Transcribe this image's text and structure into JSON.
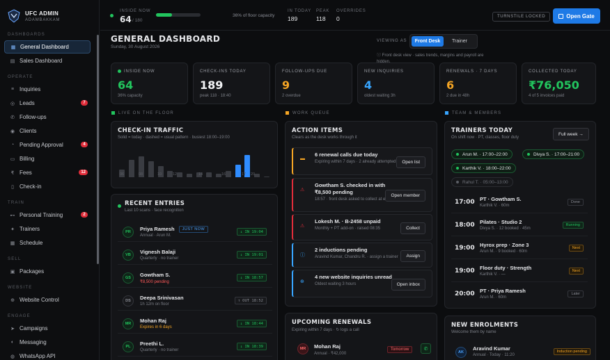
{
  "brand": {
    "name": "UFC ADMIN",
    "location": "ADAMBAKKAM"
  },
  "sidebar": {
    "sections": [
      {
        "label": "DASHBOARDS",
        "items": [
          {
            "label": "General Dashboard",
            "icon": "grid-icon",
            "active": true
          },
          {
            "label": "Sales Dashboard",
            "icon": "chart-icon"
          }
        ]
      },
      {
        "label": "OPERATE",
        "items": [
          {
            "label": "Inquiries",
            "icon": "inbox-icon"
          },
          {
            "label": "Leads",
            "icon": "target-icon",
            "badge": "7"
          },
          {
            "label": "Follow-ups",
            "icon": "phone-icon"
          },
          {
            "label": "Clients",
            "icon": "user-icon"
          },
          {
            "label": "Pending Approval",
            "icon": "clock-icon",
            "badge": "4"
          },
          {
            "label": "Billing",
            "icon": "receipt-icon"
          },
          {
            "label": "Fees",
            "icon": "rupee-icon",
            "badge": "12"
          },
          {
            "label": "Check-in",
            "icon": "door-icon"
          }
        ]
      },
      {
        "label": "TRAIN",
        "items": [
          {
            "label": "Personal Training",
            "icon": "dumbbell-icon",
            "badge": "2"
          },
          {
            "label": "Trainers",
            "icon": "star-icon"
          },
          {
            "label": "Schedule",
            "icon": "calendar-icon"
          }
        ]
      },
      {
        "label": "SELL",
        "items": [
          {
            "label": "Packages",
            "icon": "box-icon"
          }
        ]
      },
      {
        "label": "WEBSITE",
        "items": [
          {
            "label": "Website Control",
            "icon": "globe-icon"
          }
        ]
      },
      {
        "label": "ENGAGE",
        "items": [
          {
            "label": "Campaigns",
            "icon": "send-icon"
          },
          {
            "label": "Messaging",
            "icon": "chat-icon"
          },
          {
            "label": "WhatsApp API",
            "icon": "whatsapp-icon"
          }
        ]
      }
    ]
  },
  "topbar": {
    "inside_now_label": "INSIDE NOW",
    "inside_now": "64",
    "inside_cap": "/ 180",
    "occupancy": 0.36,
    "occupancy_text": "36% of floor capacity",
    "in_today_label": "IN TODAY",
    "in_today": "189",
    "peak_label": "PEAK",
    "peak": "118",
    "overrides_label": "OVERRIDES",
    "overrides": "0",
    "turnstile": "TURNSTILE LOCKED",
    "open_gate": "Open Gate"
  },
  "header": {
    "title": "GENERAL DASHBOARD",
    "date": "Sunday, 30 August 2026",
    "viewing_as": "VIEWING AS",
    "views": [
      "Front Desk",
      "Trainer"
    ],
    "note": "Front desk view · sales trends, margins and payroll are hidden."
  },
  "stats": [
    {
      "label": "INSIDE NOW",
      "value": "64",
      "sub": "36% capacity",
      "color": "#22c55e"
    },
    {
      "label": "CHECK-INS TODAY",
      "value": "189",
      "sub": "peak 118 · 18:40",
      "color": "#f3f4f6"
    },
    {
      "label": "FOLLOW-UPS DUE",
      "value": "9",
      "sub": "2 overdue",
      "color": "#f5a524"
    },
    {
      "label": "NEW INQUIRIES",
      "value": "4",
      "sub": "oldest waiting 3h",
      "color": "#38a5ff"
    },
    {
      "label": "RENEWALS · 7 DAYS",
      "value": "6",
      "sub": "2 due in 48h",
      "color": "#f5a524"
    },
    {
      "label": "COLLECTED TODAY",
      "value": "₹76,050",
      "sub": "4 of 5 invoices paid",
      "color": "#22c55e"
    }
  ],
  "sections": {
    "floor": "LIVE ON THE FLOOR",
    "queue": "WORK QUEUE",
    "team": "TEAM & MEMBERS"
  },
  "traffic": {
    "title": "CHECK-IN TRAFFIC",
    "sub": "Solid = today · dashed = usual pattern · busiest 18:00–19:00",
    "ticks": [
      "06",
      "08",
      "10",
      "12",
      "14",
      "16",
      "17",
      "20"
    ]
  },
  "chart_data": {
    "type": "bar",
    "categories": [
      "06",
      "07",
      "08",
      "09",
      "10",
      "11",
      "12",
      "13",
      "14",
      "15",
      "16",
      "17",
      "18",
      "19",
      "20",
      "21"
    ],
    "values": [
      5,
      11,
      13,
      10,
      7,
      4,
      3,
      2,
      3,
      3,
      2,
      4,
      8,
      14,
      2,
      0
    ],
    "highlight": [
      "18",
      "19"
    ],
    "xlabel": "",
    "ylabel": ""
  },
  "entries": {
    "title": "RECENT ENTRIES",
    "sub": "Last 10 scans · face recognition",
    "rows": [
      {
        "init": "PR",
        "name": "Priya Ramesh",
        "badge": "JUST NOW",
        "sub": "Annual · Arun M.",
        "tag": "↓ IN 19:04",
        "dir": "in"
      },
      {
        "init": "VB",
        "name": "Vignesh Balaji",
        "sub": "Quarterly · no trainer",
        "tag": "↓ IN 19:01",
        "dir": "in"
      },
      {
        "init": "GS",
        "name": "Gowtham S.",
        "sub": "₹8,500 pending",
        "subwarn": "red",
        "tag": "↓ IN 18:57",
        "dir": "in"
      },
      {
        "init": "DS",
        "name": "Deepa Srinivasan",
        "sub": "1h 12m on floor",
        "tag": "↑ OUT 18:52",
        "dir": "out"
      },
      {
        "init": "MR",
        "name": "Mohan Raj",
        "sub": "Expires in 6 days",
        "subwarn": "amber",
        "tag": "↓ IN 18:44",
        "dir": "in"
      },
      {
        "init": "PL",
        "name": "Preethi L.",
        "sub": "Quarterly · no trainer",
        "tag": "↓ IN 18:39",
        "dir": "in"
      }
    ]
  },
  "actions": {
    "title": "ACTION ITEMS",
    "sub": "Clears as the desk works through it",
    "items": [
      {
        "icon": "folder-icon",
        "title": "6 renewal calls due today",
        "sub": "Expiring within 7 days · 2 already attempted",
        "button": "Open list",
        "accent": "#f5a524"
      },
      {
        "icon": "warning-icon",
        "title": "Gowtham S. checked in with ₹8,500 pending",
        "sub": "18:57 · front desk asked to collect at exit",
        "button": "Open member",
        "accent": "#e02d3a"
      },
      {
        "icon": "warning-icon",
        "title": "Lokesh M. · B-2458 unpaid",
        "sub": "Monthly + PT add-on · raised 08:35",
        "button": "Collect",
        "accent": "#e02d3a"
      },
      {
        "icon": "info-icon",
        "title": "2 inductions pending",
        "sub": "Aravind Kumar, Chandru R. · assign a trainer",
        "button": "Assign",
        "accent": "#38a5ff"
      },
      {
        "icon": "globe-icon",
        "title": "4 new website inquiries unread",
        "sub": "Oldest waiting 3 hours",
        "button": "Open inbox",
        "accent": "#38a5ff"
      }
    ]
  },
  "renewals": {
    "title": "UPCOMING RENEWALS",
    "sub": "Expiring within 7 days · ↻ logs a call",
    "rows": [
      {
        "init": "MR",
        "name": "Mohan Raj",
        "sub": "Annual · ₹42,000",
        "tag": "Tomorrow"
      }
    ]
  },
  "trainers": {
    "title": "TRAINERS TODAY",
    "sub": "On shift now · PT, classes, floor duty",
    "button": "Full week →",
    "chips": [
      {
        "name": "Arun M.",
        "time": "17:00–22:00"
      },
      {
        "name": "Divya S.",
        "time": "17:00–21:00"
      },
      {
        "name": "Karthik V.",
        "time": "18:00–22:00"
      },
      {
        "name": "Rahul T.",
        "time": "05:00–13:00",
        "off": true
      }
    ],
    "schedule": [
      {
        "time": "17:00",
        "title": "PT · Gowtham S.",
        "sub": "Karthik V. · 60m",
        "tag": "Done",
        "kind": "done"
      },
      {
        "time": "18:00",
        "title": "Pilates · Studio 2",
        "sub": "Divya S. · 12 booked · 45m",
        "tag": "Running",
        "kind": "run"
      },
      {
        "time": "19:00",
        "title": "Hyrox prep · Zone 3",
        "sub": "Arun M. · 9 booked · 60m",
        "tag": "Next",
        "kind": "nxt"
      },
      {
        "time": "19:00",
        "title": "Floor duty · Strength",
        "sub": "Karthik V. · —",
        "tag": "Next",
        "kind": "nxt"
      },
      {
        "time": "20:00",
        "title": "PT · Priya Ramesh",
        "sub": "Arun M. · 60m",
        "tag": "Later",
        "kind": "lat"
      }
    ]
  },
  "enrolments": {
    "title": "NEW ENROLMENTS",
    "sub": "Welcome them by name",
    "rows": [
      {
        "init": "AK",
        "name": "Aravind Kumar",
        "sub": "Annual · Today · 11:20",
        "tag": "Induction pending"
      }
    ]
  }
}
